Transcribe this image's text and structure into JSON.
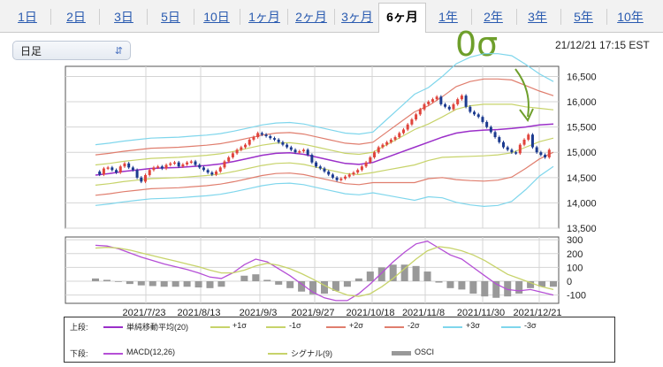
{
  "tabs": [
    {
      "label": "1日"
    },
    {
      "label": "2日"
    },
    {
      "label": "3日"
    },
    {
      "label": "5日"
    },
    {
      "label": "10日"
    },
    {
      "label": "1ヶ月"
    },
    {
      "label": "2ヶ月"
    },
    {
      "label": "3ヶ月"
    },
    {
      "label": "6ヶ月",
      "active": true
    },
    {
      "label": "1年"
    },
    {
      "label": "2年"
    },
    {
      "label": "3年"
    },
    {
      "label": "5年"
    },
    {
      "label": "10年"
    }
  ],
  "period_select": {
    "value": "日足"
  },
  "timestamp": "21/12/21 17:15 EST",
  "annotation": {
    "text": "0σ",
    "color": "#6e9f2b"
  },
  "colors": {
    "up": "#e0443c",
    "down": "#1b3a8f",
    "ma": "#9b2fc9",
    "s1": "#c7d36a",
    "s2": "#e07e6e",
    "s3": "#7fd6ec",
    "macd": "#b54fd6",
    "signal": "#c7d36a",
    "osci": "#999999"
  },
  "chart_data": [
    {
      "type": "line",
      "title": "",
      "y_ticks": [
        13500,
        14000,
        14500,
        15000,
        15500,
        16000,
        16500
      ],
      "y_tick_labels": [
        "13,500",
        "14,000",
        "14,500",
        "15,000",
        "15,500",
        "16,000",
        "16,500"
      ],
      "ylim": [
        13500,
        16700
      ],
      "x_ticks": [
        "2021/7/23",
        "2021/8/13",
        "2021/9/3",
        "2021/9/27",
        "2021/10/18",
        "2021/11/8",
        "2021/11/30",
        "2021/12/21"
      ],
      "grid": true,
      "candles": [
        14620,
        14560,
        14680,
        14700,
        14650,
        14600,
        14720,
        14780,
        14700,
        14650,
        14500,
        14420,
        14550,
        14650,
        14700,
        14720,
        14680,
        14750,
        14780,
        14800,
        14720,
        14760,
        14800,
        14820,
        14750,
        14700,
        14650,
        14600,
        14560,
        14620,
        14700,
        14820,
        14900,
        14980,
        15050,
        15100,
        15150,
        15250,
        15300,
        15380,
        15350,
        15320,
        15280,
        15250,
        15200,
        15150,
        15100,
        15050,
        15000,
        15020,
        15050,
        14950,
        14800,
        14720,
        14680,
        14620,
        14560,
        14500,
        14450,
        14480,
        14520,
        14560,
        14600,
        14650,
        14720,
        14800,
        14900,
        15000,
        15100,
        15150,
        15200,
        15250,
        15300,
        15380,
        15450,
        15550,
        15650,
        15750,
        15850,
        15950,
        16000,
        16050,
        16100,
        15950,
        15900,
        15850,
        15950,
        16050,
        16120,
        15900,
        15800,
        15750,
        15700,
        15600,
        15500,
        15400,
        15300,
        15200,
        15100,
        15050,
        15000,
        14980,
        15150,
        15250,
        15350,
        15100,
        15000,
        14950,
        14900,
        15050
      ],
      "series": [
        {
          "name": "単純移動平均(20)",
          "key": "ma",
          "values": [
            14550,
            14580,
            14620,
            14650,
            14680,
            14690,
            14700,
            14720,
            14740,
            14770,
            14820,
            14880,
            14940,
            14980,
            14990,
            14960,
            14900,
            14840,
            14780,
            14760,
            14800,
            14900,
            15000,
            15100,
            15200,
            15300,
            15380,
            15420,
            15440,
            15450,
            15470,
            15500,
            15540,
            15560
          ]
        },
        {
          "name": "+1σ",
          "key": "s1",
          "values": [
            14750,
            14780,
            14820,
            14850,
            14880,
            14890,
            14900,
            14920,
            14940,
            14970,
            15020,
            15080,
            15140,
            15180,
            15190,
            15160,
            15100,
            15040,
            14980,
            14960,
            15000,
            15150,
            15300,
            15450,
            15560,
            15700,
            15850,
            15920,
            15950,
            15950,
            15950,
            15900,
            15870,
            15840
          ]
        },
        {
          "name": "-1σ",
          "key": "s1",
          "values": [
            14350,
            14380,
            14420,
            14450,
            14480,
            14490,
            14500,
            14520,
            14540,
            14570,
            14620,
            14680,
            14740,
            14780,
            14790,
            14760,
            14700,
            14640,
            14580,
            14560,
            14600,
            14650,
            14700,
            14750,
            14840,
            14900,
            14910,
            14920,
            14930,
            14950,
            14990,
            15100,
            15210,
            15280
          ]
        },
        {
          "name": "+2σ",
          "key": "s2",
          "values": [
            14950,
            14980,
            15020,
            15050,
            15080,
            15090,
            15100,
            15120,
            15140,
            15170,
            15220,
            15280,
            15340,
            15380,
            15390,
            15360,
            15300,
            15240,
            15180,
            15160,
            15200,
            15400,
            15600,
            15800,
            15920,
            16100,
            16300,
            16400,
            16450,
            16450,
            16430,
            16320,
            16210,
            16120
          ]
        },
        {
          "name": "-2σ",
          "key": "s2",
          "values": [
            14150,
            14180,
            14220,
            14250,
            14280,
            14290,
            14300,
            14320,
            14340,
            14370,
            14420,
            14480,
            14540,
            14580,
            14590,
            14560,
            14500,
            14440,
            14380,
            14360,
            14400,
            14400,
            14400,
            14400,
            14480,
            14500,
            14460,
            14440,
            14430,
            14450,
            14510,
            14680,
            14870,
            15000
          ]
        },
        {
          "name": "+3σ",
          "key": "s3",
          "values": [
            15150,
            15180,
            15220,
            15250,
            15280,
            15290,
            15300,
            15320,
            15340,
            15370,
            15420,
            15480,
            15540,
            15580,
            15590,
            15560,
            15500,
            15440,
            15380,
            15360,
            15400,
            15650,
            15900,
            16150,
            16280,
            16500,
            16750,
            16880,
            16950,
            16950,
            16910,
            16740,
            16550,
            16400
          ]
        },
        {
          "name": "-3σ",
          "key": "s3",
          "values": [
            13950,
            13980,
            14020,
            14050,
            14080,
            14090,
            14100,
            14120,
            14140,
            14170,
            14220,
            14280,
            14340,
            14380,
            14390,
            14360,
            14300,
            14240,
            14180,
            14160,
            14200,
            14150,
            14100,
            14050,
            14120,
            14100,
            14010,
            13960,
            13930,
            13950,
            14030,
            14260,
            14530,
            14720
          ]
        }
      ]
    },
    {
      "type": "line",
      "y_ticks": [
        -100,
        0,
        100,
        200,
        300
      ],
      "y_tick_labels": [
        "-100",
        "0",
        "100",
        "200",
        "300"
      ],
      "ylim": [
        -160,
        320
      ],
      "grid": true,
      "series": [
        {
          "name": "MACD(12,26)",
          "key": "macd",
          "values": [
            260,
            255,
            235,
            205,
            175,
            150,
            125,
            105,
            85,
            60,
            30,
            20,
            60,
            120,
            160,
            140,
            90,
            40,
            -20,
            -80,
            -120,
            -140,
            -140,
            -90,
            -20,
            60,
            140,
            210,
            270,
            290,
            240,
            190,
            160,
            100,
            40,
            -20,
            -60,
            -70,
            -60,
            -80,
            -100
          ]
        },
        {
          "name": "シグナル(9)",
          "key": "signal",
          "values": [
            240,
            245,
            240,
            225,
            205,
            185,
            165,
            145,
            125,
            105,
            80,
            60,
            60,
            80,
            110,
            130,
            115,
            90,
            55,
            15,
            -30,
            -70,
            -100,
            -110,
            -90,
            -40,
            20,
            90,
            160,
            220,
            250,
            240,
            220,
            190,
            150,
            100,
            50,
            20,
            -10,
            -40,
            -60
          ]
        },
        {
          "name": "OSCI",
          "key": "osci",
          "values": [
            20,
            10,
            -5,
            -20,
            -30,
            -35,
            -40,
            -40,
            -40,
            -45,
            -50,
            -40,
            0,
            40,
            50,
            10,
            -25,
            -50,
            -75,
            -95,
            -90,
            -70,
            -40,
            20,
            70,
            100,
            120,
            120,
            110,
            70,
            -10,
            -50,
            -60,
            -90,
            -110,
            -120,
            -110,
            -90,
            -50,
            -40,
            -40
          ]
        }
      ]
    }
  ],
  "legend": {
    "upper_label": "上段:",
    "lower_label": "下段:",
    "upper_items": [
      "単純移動平均(20)",
      "+1σ",
      "-1σ",
      "+2σ",
      "-2σ",
      "+3σ",
      "-3σ"
    ],
    "lower_items": [
      "MACD(12,26)",
      "シグナル(9)",
      "OSCI"
    ]
  }
}
